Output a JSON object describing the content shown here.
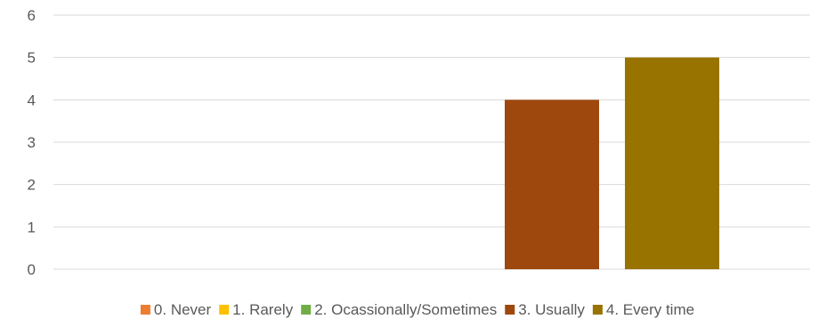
{
  "chart_data": {
    "type": "bar",
    "title": "",
    "xlabel": "",
    "ylabel": "",
    "ylim": [
      0,
      6
    ],
    "yticks": [
      0,
      1,
      2,
      3,
      4,
      5,
      6
    ],
    "grid": true,
    "legend_position": "bottom",
    "series": [
      {
        "name": "0. Never",
        "values": [
          0
        ],
        "color": "#ED7D31"
      },
      {
        "name": "1. Rarely",
        "values": [
          0
        ],
        "color": "#FFC000"
      },
      {
        "name": "2. Ocassionally/Sometimes",
        "values": [
          0
        ],
        "color": "#70AD47"
      },
      {
        "name": "3. Usually",
        "values": [
          4
        ],
        "color": "#9E480E"
      },
      {
        "name": "4. Every time",
        "values": [
          5
        ],
        "color": "#997300"
      }
    ],
    "colors": {
      "gridline": "#d9d9d9",
      "text": "#595959"
    }
  }
}
